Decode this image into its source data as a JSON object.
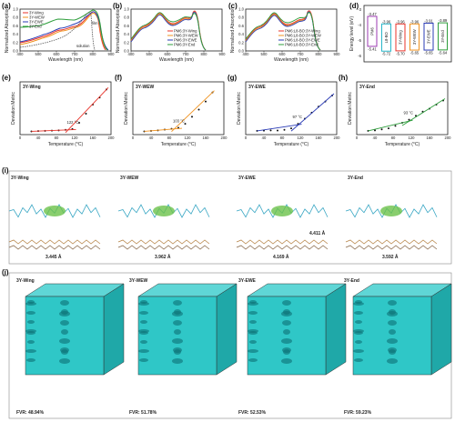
{
  "panel_labels": [
    "(a)",
    "(b)",
    "(c)",
    "(d)",
    "(e)",
    "(f)",
    "(g)",
    "(h)",
    "(i)",
    "(j)"
  ],
  "colors": {
    "wing": "#e8332a",
    "wew": "#f0921e",
    "ewe": "#2a3bb5",
    "end": "#2e9e3c",
    "pm6": "#9b3ab0",
    "l8bo": "#29b6c9",
    "bg_cube": "#2fc7c7"
  },
  "absorption_panels": [
    {
      "id": "a",
      "xlabel": "Wavelength (nm)",
      "ylabel": "Normalized Absorption",
      "xticks": [
        "400",
        "500",
        "600",
        "700",
        "800",
        "900"
      ],
      "yticks": [
        "0.0",
        "0.2",
        "0.4",
        "0.6",
        "0.8",
        "1.0"
      ],
      "legend": [
        "3Y-Wing",
        "3Y-WEW",
        "3Y-EWE",
        "3Y-End"
      ],
      "annotations": [
        "film",
        "solution"
      ]
    },
    {
      "id": "b",
      "xlabel": "Wavelength (nm)",
      "ylabel": "Normalized Absorption",
      "xticks": [
        "400",
        "500",
        "600",
        "700",
        "800",
        "900"
      ],
      "yticks": [
        "0.0",
        "0.2",
        "0.4",
        "0.6",
        "0.8",
        "1.0"
      ],
      "legend": [
        "PM6:3Y-Wing",
        "PM6:3Y-WEW",
        "PM6:3Y-EWE",
        "PM6:3Y-End"
      ]
    },
    {
      "id": "c",
      "xlabel": "Wavelength (nm)",
      "ylabel": "Normalized Absorption",
      "xticks": [
        "400",
        "500",
        "600",
        "700",
        "800",
        "900"
      ],
      "yticks": [
        "0.0",
        "0.2",
        "0.4",
        "0.6",
        "0.8",
        "1.0"
      ],
      "legend": [
        "PM6:L8-BO:3Y-Wing",
        "PM6:L8-BO:3Y-WEW",
        "PM6:L8-BO:3Y-EWE",
        "PM6:L8-BO:3Y-End"
      ]
    }
  ],
  "energy_panel": {
    "ylabel": "Energy level (eV)",
    "yticks": [
      "-3",
      "-4",
      "-5",
      "-6"
    ],
    "materials": [
      {
        "name": "PM6",
        "lumo": "-3.47",
        "homo": "-5.41"
      },
      {
        "name": "L8-BO",
        "lumo": "-3.96",
        "homo": "-5.72"
      },
      {
        "name": "3Y-Wing",
        "lumo": "-3.96",
        "homo": "-5.70"
      },
      {
        "name": "3Y-WEW",
        "lumo": "-3.96",
        "homo": "-5.65"
      },
      {
        "name": "3Y-EWE",
        "lumo": "-3.91",
        "homo": "-5.65"
      },
      {
        "name": "3Y-End",
        "lumo": "-3.89",
        "homo": "-5.64"
      }
    ]
  },
  "deviation_panels": [
    {
      "id": "e",
      "name": "3Y-Wing",
      "temp": "122 °C",
      "xticks": [
        "0",
        "40",
        "80",
        "120",
        "160",
        "200"
      ]
    },
    {
      "id": "f",
      "name": "3Y-WEW",
      "temp": "103 °C",
      "xticks": [
        "0",
        "40",
        "80",
        "120",
        "160",
        "200"
      ]
    },
    {
      "id": "g",
      "name": "3Y-EWE",
      "temp": "97 °C",
      "xticks": [
        "0",
        "40",
        "80",
        "120",
        "160",
        "200"
      ]
    },
    {
      "id": "h",
      "name": "3Y-End",
      "temp": "93 °C",
      "xticks": [
        "0",
        "40",
        "80",
        "120",
        "160",
        "200"
      ]
    }
  ],
  "deviation_axes": {
    "xlabel": "Temperature (°C)",
    "ylabel": "Deviation Metric"
  },
  "chart_data": [
    {
      "type": "line",
      "panel": "e",
      "title": "3Y-Wing",
      "xlabel": "Temperature (°C)",
      "ylabel": "Deviation Metric",
      "x": [
        25,
        40,
        55,
        70,
        85,
        100,
        115,
        130,
        145,
        160,
        175,
        190
      ],
      "y": [
        0.05,
        0.08,
        0.1,
        0.12,
        0.15,
        0.2,
        0.28,
        0.9,
        1.8,
        2.7,
        3.4,
        4.2
      ],
      "annotation": "122 °C",
      "xlim": [
        0,
        200
      ]
    },
    {
      "type": "line",
      "panel": "f",
      "title": "3Y-WEW",
      "xlabel": "Temperature (°C)",
      "ylabel": "Deviation Metric",
      "x": [
        25,
        40,
        55,
        70,
        85,
        100,
        115,
        130,
        145,
        160,
        175
      ],
      "y": [
        0.05,
        0.1,
        0.15,
        0.22,
        0.3,
        0.4,
        0.8,
        1.5,
        2.2,
        3.0,
        3.9
      ],
      "annotation": "103 °C",
      "xlim": [
        0,
        200
      ]
    },
    {
      "type": "line",
      "panel": "g",
      "title": "3Y-EWE",
      "xlabel": "Temperature (°C)",
      "ylabel": "Deviation Metric",
      "x": [
        25,
        40,
        55,
        70,
        85,
        100,
        115,
        130,
        145,
        160,
        175,
        190
      ],
      "y": [
        0.1,
        0.12,
        0.15,
        0.14,
        0.2,
        0.35,
        0.8,
        1.3,
        1.9,
        2.5,
        3.0,
        3.6
      ],
      "annotation": "97 °C",
      "xlim": [
        0,
        200
      ]
    },
    {
      "type": "line",
      "panel": "h",
      "title": "3Y-End",
      "xlabel": "Temperature (°C)",
      "ylabel": "Deviation Metric",
      "x": [
        25,
        40,
        55,
        70,
        85,
        100,
        115,
        130,
        145,
        160,
        175,
        190
      ],
      "y": [
        0.1,
        0.15,
        0.25,
        0.35,
        0.6,
        0.9,
        1.2,
        1.6,
        2.0,
        2.3,
        2.7,
        3.1
      ],
      "annotation": "93 °C",
      "xlim": [
        0,
        200
      ]
    }
  ],
  "panel_i": {
    "names": [
      "3Y-Wing",
      "3Y-WEW",
      "3Y-EWE",
      "3Y-End"
    ],
    "distances": [
      "3.445 Å",
      "3.962 Å",
      "4.169 Å",
      "3.592 Å"
    ],
    "extra_distance": "4.411 Å"
  },
  "panel_j": {
    "names": [
      "3Y-Wing",
      "3Y-WEW",
      "3Y-EWE",
      "3Y-End"
    ],
    "fvr": [
      "FVR: 48.94%",
      "FVR: 51.78%",
      "FVR: 52.53%",
      "FVR: 59.23%"
    ]
  }
}
